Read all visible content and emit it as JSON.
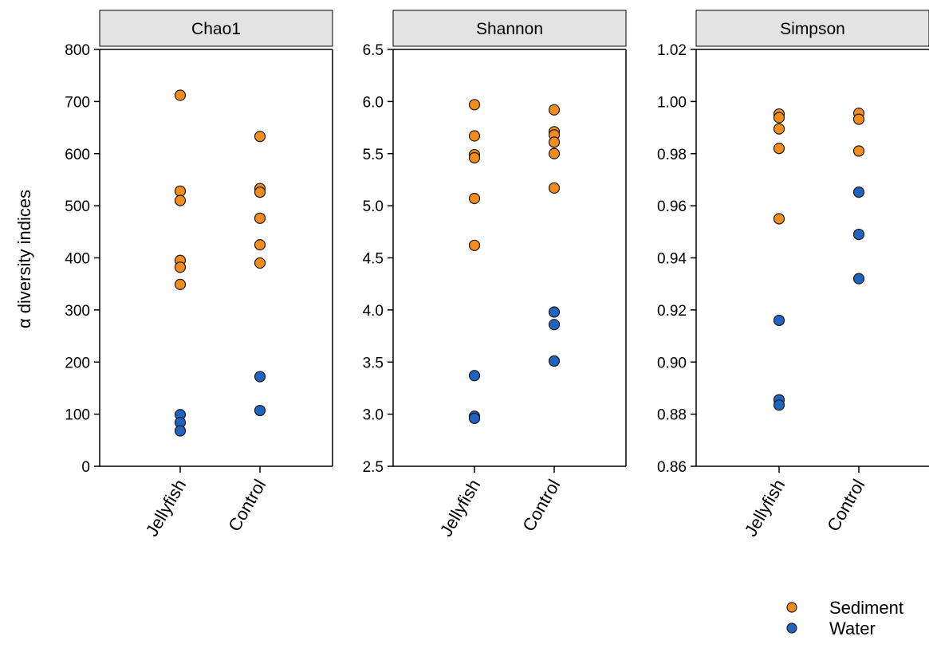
{
  "chart_data": {
    "type": "scatter",
    "ylabel": "α diversity indices",
    "categories": [
      "Jellyfish",
      "Control"
    ],
    "legend": {
      "placement": "bottom-right",
      "entries": [
        {
          "name": "Sediment",
          "color": "#f28c1c"
        },
        {
          "name": "Water",
          "color": "#1f64c0"
        }
      ]
    },
    "panels": [
      {
        "title": "Chao1",
        "ylim": [
          0,
          800
        ],
        "ticks": [
          "0",
          "100",
          "200",
          "300",
          "400",
          "500",
          "600",
          "700",
          "800"
        ],
        "series": [
          {
            "name": "Sediment",
            "points": {
              "Jellyfish": [
                712,
                528,
                510,
                395,
                382,
                349
              ],
              "Control": [
                633,
                533,
                526,
                476,
                425,
                390
              ]
            }
          },
          {
            "name": "Water",
            "points": {
              "Jellyfish": [
                99,
                84,
                68
              ],
              "Control": [
                172,
                107
              ]
            }
          }
        ]
      },
      {
        "title": "Shannon",
        "ylim": [
          2.5,
          6.5
        ],
        "ticks": [
          "2.5",
          "3.0",
          "3.5",
          "4.0",
          "4.5",
          "5.0",
          "5.5",
          "6.0",
          "6.5"
        ],
        "series": [
          {
            "name": "Sediment",
            "points": {
              "Jellyfish": [
                5.97,
                5.67,
                5.49,
                5.46,
                5.07,
                4.62
              ],
              "Control": [
                5.92,
                5.71,
                5.68,
                5.61,
                5.5,
                5.17
              ]
            }
          },
          {
            "name": "Water",
            "points": {
              "Jellyfish": [
                3.37,
                2.98,
                2.96
              ],
              "Control": [
                3.98,
                3.86,
                3.51
              ]
            }
          }
        ]
      },
      {
        "title": "Simpson",
        "ylim": [
          0.86,
          1.02
        ],
        "ticks": [
          "0.86",
          "0.88",
          "0.90",
          "0.92",
          "0.94",
          "0.96",
          "0.98",
          "1.00",
          "1.02"
        ],
        "series": [
          {
            "name": "Sediment",
            "points": {
              "Jellyfish": [
                0.9952,
                0.9938,
                0.9895,
                0.982,
                0.955
              ],
              "Control": [
                0.9955,
                0.9932,
                0.981
              ]
            }
          },
          {
            "name": "Water",
            "points": {
              "Jellyfish": [
                0.916,
                0.8855,
                0.8835
              ],
              "Control": [
                0.9652,
                0.949,
                0.932
              ]
            }
          }
        ]
      }
    ]
  }
}
